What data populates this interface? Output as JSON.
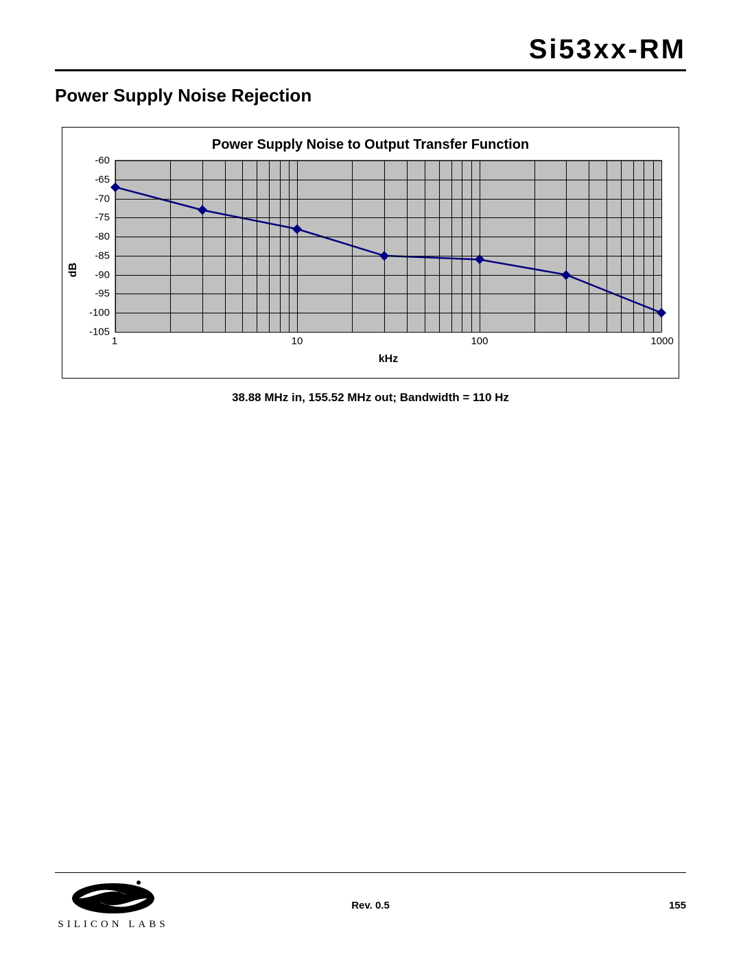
{
  "doc_title": "Si53xx-RM",
  "section_title": "Power Supply Noise Rejection",
  "chart": {
    "type": "line",
    "title": "Power Supply Noise to Output Transfer Function",
    "xlabel": "kHz",
    "ylabel": "dB",
    "xscale": "log",
    "xlim": [
      1,
      1000
    ],
    "ylim": [
      -105,
      -60
    ],
    "xtick_values": [
      1,
      10,
      100,
      1000
    ],
    "xtick_labels": [
      "1",
      "10",
      "100",
      "1000"
    ],
    "ytick_values": [
      -60,
      -65,
      -70,
      -75,
      -80,
      -85,
      -90,
      -95,
      -100,
      -105
    ],
    "ytick_labels": [
      "-60",
      "-65",
      "-70",
      "-75",
      "-80",
      "-85",
      "-90",
      "-95",
      "-100",
      "-105"
    ],
    "plot_background": "#c0c0c0",
    "grid_color": "#000000",
    "line_color": "#000080",
    "line_width": 2.5,
    "marker_color": "#000080",
    "marker_size": 7,
    "series": {
      "x": [
        1,
        3,
        10,
        30,
        100,
        300,
        1000
      ],
      "y": [
        -67,
        -73,
        -78,
        -85,
        -86,
        -90,
        -100
      ]
    }
  },
  "caption": "38.88 MHz in, 155.52 MHz out; Bandwidth = 110 Hz",
  "footer": {
    "logo_text": "SILICON LABS",
    "revision": "Rev. 0.5",
    "page_number": "155"
  }
}
